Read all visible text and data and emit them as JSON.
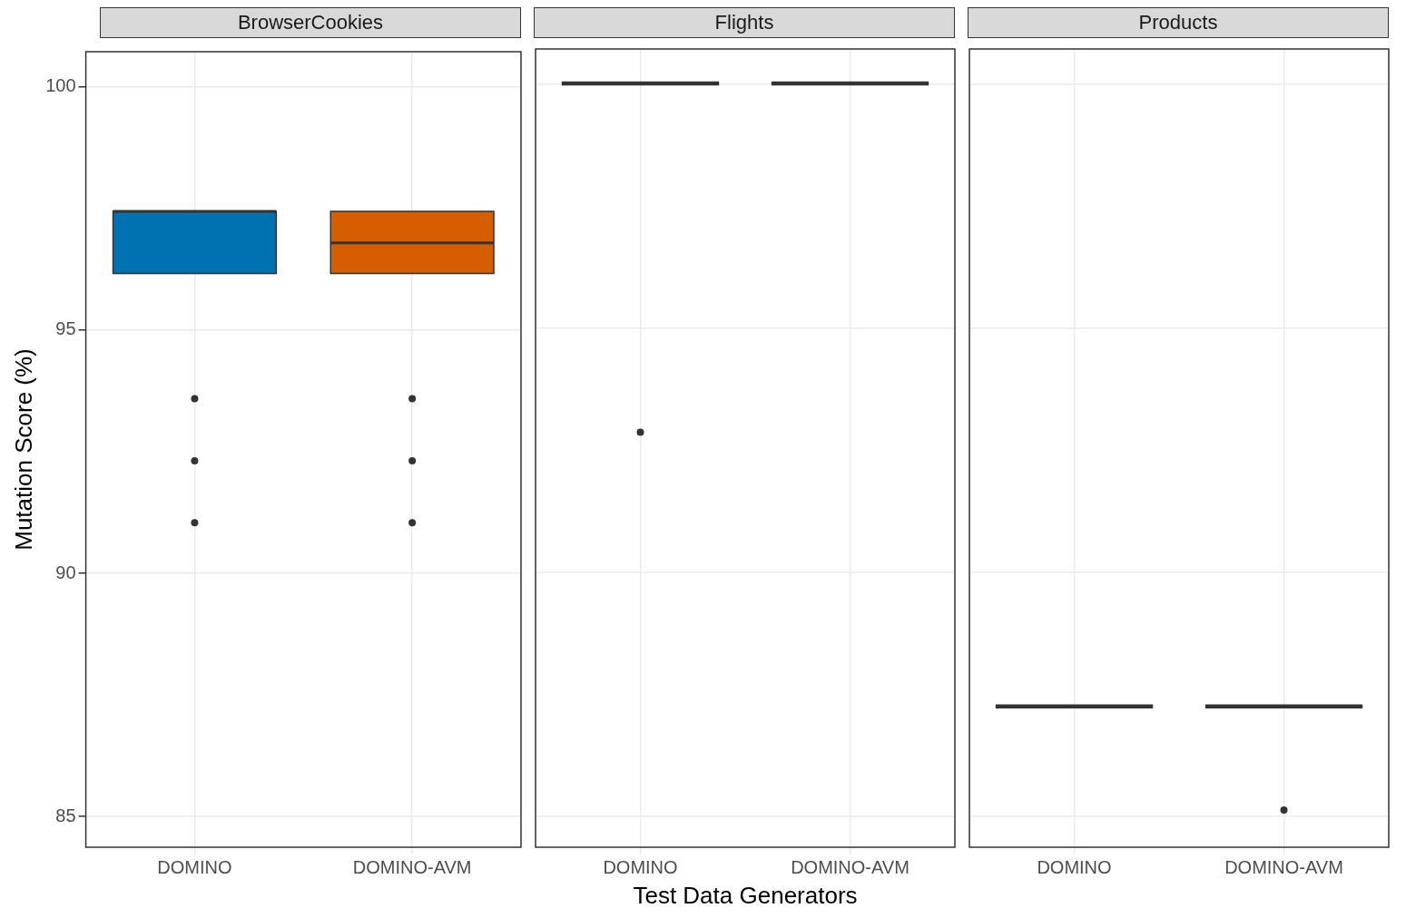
{
  "chart_data": [
    {
      "type": "box",
      "title": "BrowserCookies",
      "ylabel": "Mutation Score (%)",
      "categories": [
        "DOMINO",
        "DOMINO-AVM"
      ],
      "colors": [
        "#0072b2",
        "#d55e00"
      ],
      "ylim": [
        84.37,
        100.72
      ],
      "yticks": [
        85,
        90,
        95,
        100
      ],
      "grid": true,
      "legend": false,
      "boxes": [
        {
          "low": 96.16,
          "q1": 96.16,
          "median": 97.44,
          "q3": 97.44,
          "high": 97.44,
          "outliers": [
            93.59,
            92.31,
            91.04
          ]
        },
        {
          "low": 96.16,
          "q1": 96.16,
          "median": 96.79,
          "q3": 97.44,
          "high": 97.44,
          "outliers": [
            93.59,
            92.31,
            91.04
          ]
        }
      ]
    },
    {
      "type": "box",
      "title": "Flights",
      "xlabel": "Test Data Generators",
      "categories": [
        "DOMINO",
        "DOMINO-AVM"
      ],
      "ylim": [
        84.37,
        100.72
      ],
      "yticks": [
        85,
        90,
        95,
        100
      ],
      "grid": true,
      "legend": false,
      "tick_labels": "x",
      "boxes": [
        {
          "low": 100,
          "q1": 100,
          "median": 100,
          "q3": 100,
          "high": 100,
          "outliers": [
            92.87
          ]
        },
        {
          "low": 100,
          "q1": 100,
          "median": 100,
          "q3": 100,
          "high": 100
        }
      ]
    },
    {
      "type": "box",
      "title": "Products",
      "categories": [
        "DOMINO",
        "DOMINO-AVM"
      ],
      "ylim": [
        84.37,
        100.72
      ],
      "yticks": [
        85,
        90,
        95,
        100
      ],
      "grid": true,
      "legend": false,
      "tick_labels": "x",
      "boxes": [
        {
          "low": 87.24,
          "q1": 87.24,
          "median": 87.24,
          "q3": 87.24,
          "high": 87.24
        },
        {
          "low": 87.24,
          "q1": 87.24,
          "median": 87.24,
          "q3": 87.24,
          "high": 87.24,
          "outliers": [
            85.13
          ]
        }
      ]
    }
  ]
}
